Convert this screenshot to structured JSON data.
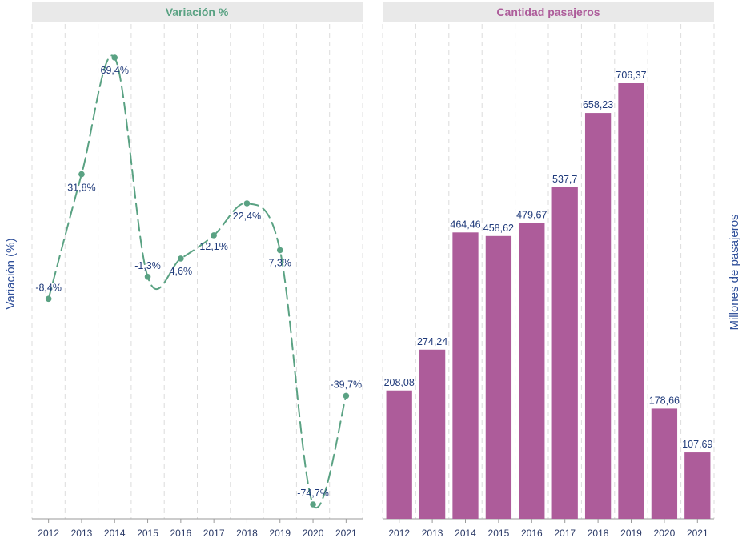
{
  "colors": {
    "header_bg": "#e9e9e9",
    "line": "#5aa283",
    "bar": "#ad5c9a",
    "label": "#1f3a7a",
    "left_title": "#5aa283",
    "right_title": "#ad5c9a",
    "grid": "#dcdcdc"
  },
  "chart_data": [
    {
      "type": "line",
      "title": "Variación %",
      "ylabel": "Variación (%)",
      "style": "dashed smooth line with point markers",
      "x": [
        "2012",
        "2013",
        "2014",
        "2015",
        "2016",
        "2017",
        "2018",
        "2019",
        "2020",
        "2021"
      ],
      "values": [
        -8.4,
        31.8,
        69.4,
        -1.3,
        4.6,
        12.1,
        22.4,
        7.3,
        -74.7,
        -39.7
      ],
      "value_labels": [
        "-8,4%",
        "31,8%",
        "69,4%",
        "-1,3%",
        "4,6%",
        "12,1%",
        "22,4%",
        "7,3%",
        "-74,7%",
        "-39,7%"
      ],
      "ylim": [
        -74.7,
        69.4
      ],
      "grid": "vertical dashed"
    },
    {
      "type": "bar",
      "title": "Cantidad pasajeros",
      "ylabel": "Millones de pasajeros",
      "categories": [
        "2012",
        "2013",
        "2014",
        "2015",
        "2016",
        "2017",
        "2018",
        "2019",
        "2020",
        "2021"
      ],
      "values": [
        208.08,
        274.24,
        464.46,
        458.62,
        479.67,
        537.7,
        658.23,
        706.37,
        178.66,
        107.69
      ],
      "value_labels": [
        "208,08",
        "274,24",
        "464,46",
        "458,62",
        "479,67",
        "537,7",
        "658,23",
        "706,37",
        "178,66",
        "107,69"
      ],
      "ylim": [
        0,
        706.37
      ],
      "grid": "vertical dashed"
    }
  ]
}
